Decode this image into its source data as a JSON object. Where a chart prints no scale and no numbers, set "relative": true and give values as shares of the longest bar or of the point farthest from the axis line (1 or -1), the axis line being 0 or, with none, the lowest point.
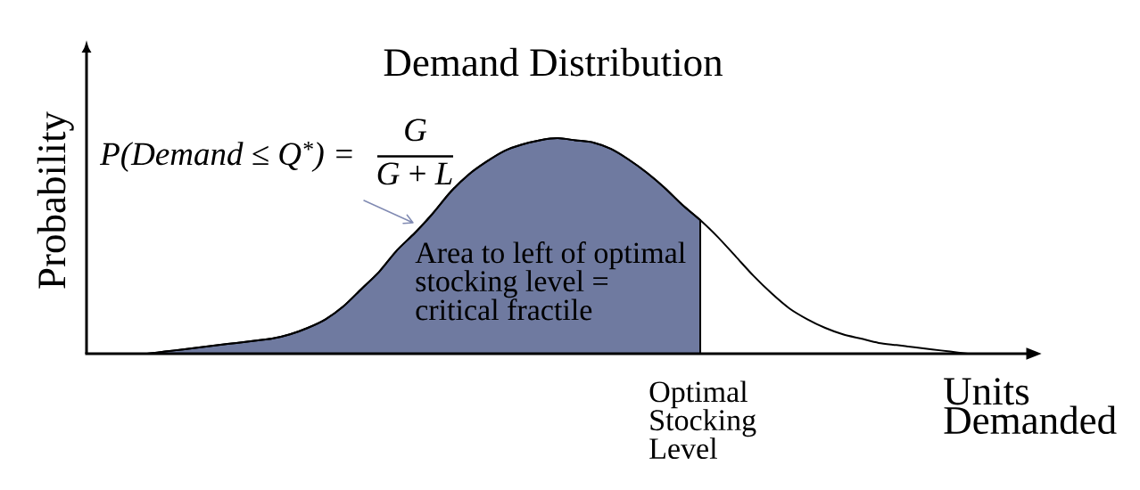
{
  "chart_data": {
    "type": "line",
    "title": "Demand Distribution",
    "xlabel": "Units Demanded",
    "ylabel": "Probability",
    "relative": true,
    "marker": "none",
    "categories": [
      null,
      null,
      null,
      null,
      null,
      null,
      null,
      null,
      null,
      null,
      null,
      null,
      null,
      null,
      null,
      null,
      null,
      null,
      null,
      null,
      null,
      null,
      null,
      null,
      null,
      null,
      null,
      null,
      null,
      null,
      null,
      null,
      null,
      null,
      null,
      null,
      null,
      null,
      null,
      null,
      null,
      null,
      null,
      null,
      null,
      null,
      null
    ],
    "series": [
      {
        "type": "area",
        "color": "#6f7aa0",
        "values": [
          0,
          0.01,
          0.02,
          0.03,
          0.04,
          0.05,
          0.06,
          0.07,
          0.09,
          0.12,
          0.16,
          0.22,
          0.3,
          0.38,
          0.48,
          0.56,
          0.65,
          0.75,
          0.83,
          0.89,
          0.94,
          0.97,
          0.99,
          1,
          0.99,
          0.98,
          0.95,
          0.9,
          0.84,
          0.77,
          0.69,
          0.62,
          null,
          null,
          null,
          null,
          null,
          null,
          null,
          null,
          null,
          null,
          null,
          null,
          null,
          null,
          null
        ]
      },
      {
        "type": "line",
        "color": "#000000",
        "values": [
          0,
          0.01,
          0.02,
          0.03,
          0.04,
          0.05,
          0.06,
          0.07,
          0.09,
          0.12,
          0.16,
          0.22,
          0.3,
          0.38,
          0.48,
          0.56,
          0.65,
          0.75,
          0.83,
          0.89,
          0.94,
          0.97,
          0.99,
          1,
          0.99,
          0.98,
          0.95,
          0.9,
          0.84,
          0.77,
          0.69,
          0.62,
          0.54,
          0.45,
          0.36,
          0.28,
          0.21,
          0.16,
          0.12,
          0.09,
          0.07,
          0.05,
          0.04,
          0.03,
          0.02,
          0.01,
          0
        ]
      }
    ],
    "annotations": [
      "P(Demand ≤ Q$^{*}$) =",
      "G",
      "*G* + *L*",
      "Area to left of optimal stocking level = critical fractile",
      "Optimal Stocking Level"
    ]
  }
}
